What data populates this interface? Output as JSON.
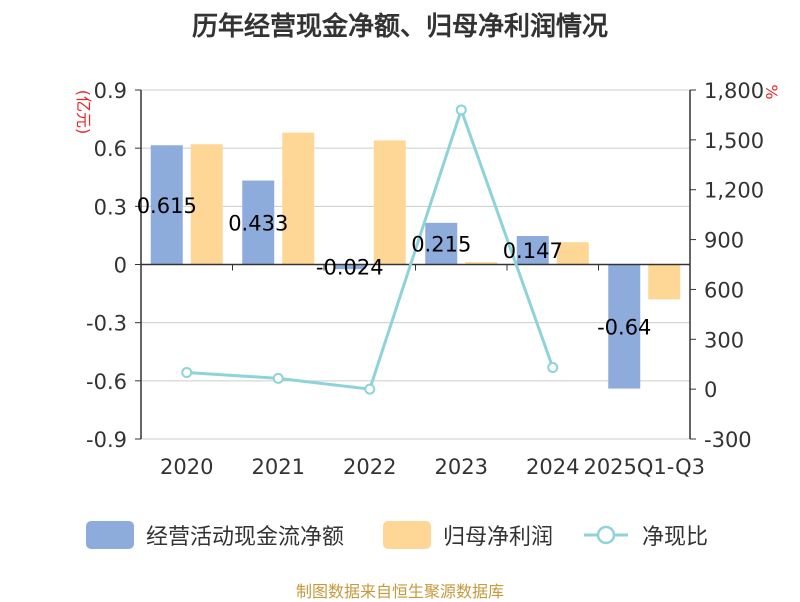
{
  "chart_data": {
    "type": "bar",
    "title": "历年经营现金净额、归母净利润情况",
    "categories": [
      "2020",
      "2021",
      "2022",
      "2023",
      "2024",
      "2025Q1-Q3"
    ],
    "series": [
      {
        "name": "经营活动现金流净额",
        "type": "bar",
        "axis": "left",
        "color": "#8eacdb",
        "values": [
          0.615,
          0.433,
          -0.024,
          0.215,
          0.147,
          -0.64
        ],
        "labels": [
          "0.615",
          "0.433",
          "-0.024",
          "0.215",
          "0.147",
          "-0.64"
        ]
      },
      {
        "name": "归母净利润",
        "type": "bar",
        "axis": "left",
        "color": "#fed797",
        "values": [
          0.62,
          0.68,
          0.64,
          0.012,
          0.115,
          -0.18
        ]
      },
      {
        "name": "净现比",
        "type": "line",
        "axis": "right",
        "color": "#8dd3d9",
        "values": [
          100,
          65,
          0,
          1680,
          130,
          null
        ]
      }
    ],
    "y_left": {
      "label": "(亿元)",
      "ylim": [
        -0.9,
        0.9
      ],
      "ticks": [
        0.9,
        0.6,
        0.3,
        0,
        -0.3,
        -0.6,
        -0.9
      ],
      "tick_labels": [
        "0.9",
        "0.6",
        "0.3",
        "0",
        "-0.3",
        "-0.6",
        "-0.9"
      ]
    },
    "y_right": {
      "label": "%",
      "ylim": [
        -300,
        1800
      ],
      "ticks": [
        1800,
        1500,
        1200,
        900,
        600,
        300,
        0,
        -300
      ],
      "tick_labels": [
        "1,800",
        "1,500",
        "1,200",
        "900",
        "600",
        "300",
        "0",
        "-300"
      ]
    },
    "grid": true,
    "legend_position": "bottom"
  },
  "source": "制图数据来自恒生聚源数据库",
  "colors": {
    "axis": "#333333",
    "grid": "#cccccc",
    "left_unit": "#e8262a",
    "right_unit": "#e8262a"
  }
}
